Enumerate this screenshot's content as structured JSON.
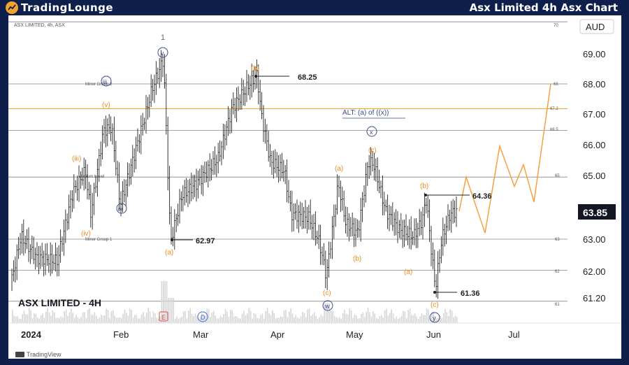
{
  "header": {
    "brand": "TradingLounge",
    "title": "Asx Limited 4h Asx Chart"
  },
  "chart_data": {
    "type": "candlestick",
    "symbol_line": "ASX LIMITED, 4h, ASX",
    "watermark": "ASX LIMITED - 4H",
    "currency": "AUD",
    "last_price": "63.85",
    "y_ticks": [
      "69.00",
      "68.00",
      "67.00",
      "66.00",
      "65.00",
      "63.00",
      "62.00",
      "61.20"
    ],
    "y_small": [
      "70",
      "68",
      "67.2",
      "66.5",
      "65",
      "63",
      "62",
      "61"
    ],
    "x_ticks": [
      "2024",
      "Feb",
      "Mar",
      "Apr",
      "May",
      "Jun",
      "Jul"
    ],
    "levels": [
      {
        "value": 70,
        "label": ""
      },
      {
        "value": 68,
        "label": "Minor Group 2"
      },
      {
        "value": 67.2,
        "label": ""
      },
      {
        "value": 66.5,
        "label": ""
      },
      {
        "value": 65,
        "label": "Medium Level"
      },
      {
        "value": 63,
        "label": "Minor Group 1"
      },
      {
        "value": 62,
        "label": ""
      },
      {
        "value": 61,
        "label": ""
      }
    ],
    "price_callouts": [
      "68.25",
      "62.97",
      "64.36",
      "61.36"
    ],
    "wave_labels": {
      "one": "1",
      "circ_v": "v",
      "circ_iii": "iii",
      "circ_iv": "iv",
      "v": "(v)",
      "iii": "(iii)",
      "iv": "(iv)",
      "a1": "(a)",
      "b1": "(b)",
      "a2": "(a)",
      "b2": "(b)",
      "c1": "(c)",
      "c2": "(c)",
      "circ_w": "w",
      "circ_x": "x",
      "alt": "ALT: (a) of ((x))",
      "b3": "(b)",
      "a3": "(a)",
      "c3": "(c)",
      "circ_y": "y"
    },
    "events": [
      "E",
      "D"
    ],
    "projection": [
      63.9,
      65.0,
      63.2,
      66.0,
      64.7,
      65.4,
      64.2,
      68.0
    ],
    "footer": "TradingView"
  }
}
